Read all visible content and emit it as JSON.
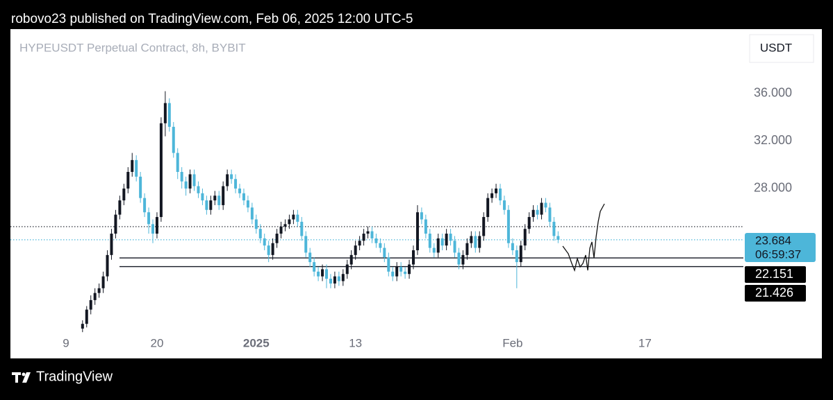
{
  "header": "robovo23 published on TradingView.com, Feb 06, 2025 12:00 UTC-5",
  "chart_data": {
    "type": "candlestick",
    "title": "HYPEUSDT Perpetual Contract, 8h, BYBIT",
    "currency": "USDT",
    "up_color": "#131722",
    "down_color": "#4db6d9",
    "x": [
      11,
      11.5,
      12,
      12.5,
      13,
      13.5,
      14,
      14.5,
      15,
      15.5,
      16,
      16.5,
      17,
      17.5,
      18,
      18.5,
      19,
      19.5,
      20,
      20.5,
      21,
      21.5,
      22,
      22.5,
      23,
      23.5,
      24,
      24.5,
      25,
      25.5,
      26,
      26.5,
      27,
      27.5,
      28,
      28.5,
      29,
      29.5,
      30,
      30.5,
      31,
      31.5,
      32,
      32.5,
      33,
      33.5,
      34,
      34.5,
      35,
      35.5,
      36,
      36.5,
      37,
      37.5,
      38,
      38.5,
      39,
      39.5,
      40,
      40.5,
      41,
      41.5,
      42,
      42.5,
      43,
      43.5,
      44,
      44.5,
      45,
      45.5,
      46,
      46.5,
      47,
      47.5,
      48,
      48.5,
      49,
      49.5,
      50,
      50.5,
      51,
      51.5,
      52,
      52.5,
      53,
      53.5,
      54,
      54.5,
      55,
      55.5,
      56,
      56.5,
      57,
      57.5,
      58,
      58.5,
      59,
      59.5,
      60,
      60.5,
      61,
      61.5,
      62,
      62.5,
      63,
      63.5,
      64,
      64.5,
      65,
      65.5,
      66,
      66.5,
      67,
      67.5,
      68,
      68.5
    ],
    "ohlc": [
      [
        16.2,
        16.9,
        15.9,
        16.6
      ],
      [
        16.6,
        18.1,
        16.3,
        17.8
      ],
      [
        17.8,
        19.0,
        17.4,
        18.6
      ],
      [
        18.6,
        19.6,
        18.2,
        19.2
      ],
      [
        19.2,
        20.0,
        18.8,
        19.6
      ],
      [
        19.6,
        21.0,
        19.2,
        20.6
      ],
      [
        20.6,
        22.8,
        20.2,
        22.4
      ],
      [
        22.4,
        24.6,
        22.0,
        24.2
      ],
      [
        24.2,
        26.2,
        23.8,
        25.8
      ],
      [
        25.8,
        27.4,
        25.4,
        27.0
      ],
      [
        27.0,
        28.4,
        26.6,
        28.0
      ],
      [
        28.0,
        29.8,
        27.6,
        29.4
      ],
      [
        29.4,
        31.0,
        29.0,
        30.4
      ],
      [
        30.4,
        30.8,
        28.6,
        29.0
      ],
      [
        29.0,
        29.4,
        26.8,
        27.2
      ],
      [
        27.2,
        27.6,
        25.6,
        26.0
      ],
      [
        26.0,
        26.4,
        24.2,
        25.0
      ],
      [
        25.0,
        25.4,
        23.4,
        24.2
      ],
      [
        24.2,
        26.0,
        23.8,
        25.6
      ],
      [
        25.6,
        34.0,
        25.2,
        33.5
      ],
      [
        33.5,
        36.2,
        32.4,
        35.2
      ],
      [
        35.2,
        35.6,
        32.8,
        33.2
      ],
      [
        33.2,
        33.6,
        30.6,
        31.0
      ],
      [
        31.0,
        31.4,
        28.8,
        29.4
      ],
      [
        29.4,
        29.8,
        28.0,
        28.6
      ],
      [
        28.6,
        29.0,
        27.4,
        28.0
      ],
      [
        28.0,
        29.6,
        27.6,
        29.2
      ],
      [
        29.2,
        29.6,
        27.8,
        28.2
      ],
      [
        28.2,
        28.6,
        27.2,
        27.6
      ],
      [
        27.6,
        28.0,
        26.6,
        27.0
      ],
      [
        27.0,
        27.4,
        25.8,
        26.2
      ],
      [
        26.2,
        27.4,
        25.8,
        27.0
      ],
      [
        27.0,
        27.8,
        26.6,
        27.4
      ],
      [
        27.4,
        27.8,
        26.2,
        26.6
      ],
      [
        26.6,
        28.6,
        26.2,
        28.2
      ],
      [
        28.2,
        29.6,
        27.8,
        29.2
      ],
      [
        29.2,
        29.6,
        28.4,
        28.8
      ],
      [
        28.8,
        29.2,
        27.6,
        28.0
      ],
      [
        28.0,
        28.4,
        27.2,
        27.6
      ],
      [
        27.6,
        28.0,
        26.6,
        27.0
      ],
      [
        27.0,
        27.4,
        26.0,
        26.4
      ],
      [
        26.4,
        26.8,
        25.0,
        25.4
      ],
      [
        25.4,
        25.8,
        24.2,
        24.6
      ],
      [
        24.6,
        25.0,
        23.4,
        23.8
      ],
      [
        23.8,
        24.2,
        22.8,
        23.2
      ],
      [
        23.2,
        23.6,
        21.8,
        22.4
      ],
      [
        22.4,
        23.8,
        22.0,
        23.4
      ],
      [
        23.4,
        24.6,
        23.0,
        24.2
      ],
      [
        24.2,
        25.2,
        23.8,
        24.8
      ],
      [
        24.8,
        25.4,
        24.4,
        25.0
      ],
      [
        25.0,
        25.8,
        24.6,
        25.4
      ],
      [
        25.4,
        26.2,
        25.0,
        25.8
      ],
      [
        25.8,
        26.2,
        24.8,
        25.2
      ],
      [
        25.2,
        25.6,
        23.6,
        24.0
      ],
      [
        24.0,
        24.4,
        22.2,
        22.6
      ],
      [
        22.6,
        23.0,
        21.4,
        21.8
      ],
      [
        21.8,
        22.2,
        20.6,
        21.0
      ],
      [
        21.0,
        21.4,
        20.2,
        20.6
      ],
      [
        20.6,
        21.6,
        20.2,
        21.2
      ],
      [
        21.2,
        21.6,
        19.6,
        20.4
      ],
      [
        20.4,
        20.8,
        19.6,
        20.0
      ],
      [
        20.0,
        21.0,
        19.6,
        20.6
      ],
      [
        20.6,
        21.0,
        19.8,
        20.2
      ],
      [
        20.2,
        21.2,
        19.8,
        20.8
      ],
      [
        20.8,
        22.0,
        20.4,
        21.6
      ],
      [
        21.6,
        22.8,
        21.2,
        22.4
      ],
      [
        22.4,
        23.6,
        22.0,
        23.2
      ],
      [
        23.2,
        24.0,
        22.8,
        23.6
      ],
      [
        23.6,
        24.6,
        23.2,
        24.2
      ],
      [
        24.2,
        24.8,
        23.8,
        24.4
      ],
      [
        24.4,
        24.8,
        23.4,
        23.8
      ],
      [
        23.8,
        24.2,
        23.0,
        23.4
      ],
      [
        23.4,
        23.8,
        22.6,
        23.0
      ],
      [
        23.0,
        23.4,
        21.8,
        22.2
      ],
      [
        22.2,
        22.6,
        20.6,
        21.0
      ],
      [
        21.0,
        21.4,
        20.2,
        20.6
      ],
      [
        20.6,
        21.8,
        20.2,
        21.4
      ],
      [
        21.4,
        21.8,
        20.6,
        21.0
      ],
      [
        21.0,
        21.4,
        20.4,
        20.8
      ],
      [
        20.8,
        22.0,
        20.4,
        21.6
      ],
      [
        21.6,
        23.2,
        21.2,
        22.8
      ],
      [
        22.8,
        26.6,
        22.4,
        26.0
      ],
      [
        26.0,
        26.4,
        25.0,
        25.4
      ],
      [
        25.4,
        25.8,
        23.8,
        24.2
      ],
      [
        24.2,
        24.6,
        22.6,
        23.0
      ],
      [
        23.0,
        23.4,
        22.2,
        22.6
      ],
      [
        22.6,
        24.2,
        22.2,
        23.8
      ],
      [
        23.8,
        24.2,
        22.8,
        23.2
      ],
      [
        23.2,
        24.6,
        22.8,
        24.2
      ],
      [
        24.2,
        24.6,
        23.2,
        23.6
      ],
      [
        23.6,
        24.0,
        22.2,
        22.6
      ],
      [
        22.6,
        23.0,
        21.2,
        21.6
      ],
      [
        21.6,
        22.8,
        21.2,
        22.4
      ],
      [
        22.4,
        23.8,
        22.0,
        23.4
      ],
      [
        23.4,
        24.4,
        23.0,
        24.0
      ],
      [
        24.0,
        24.4,
        22.6,
        23.0
      ],
      [
        23.0,
        24.4,
        22.6,
        24.0
      ],
      [
        24.0,
        26.0,
        23.6,
        25.6
      ],
      [
        25.6,
        27.6,
        25.2,
        27.2
      ],
      [
        27.2,
        28.0,
        26.8,
        27.6
      ],
      [
        27.6,
        28.4,
        27.2,
        28.0
      ],
      [
        28.0,
        28.4,
        26.6,
        27.0
      ],
      [
        27.0,
        27.4,
        25.8,
        26.2
      ],
      [
        26.2,
        26.6,
        23.0,
        23.4
      ],
      [
        23.4,
        23.8,
        22.4,
        22.8
      ],
      [
        22.8,
        23.2,
        19.6,
        21.8
      ],
      [
        21.8,
        23.6,
        21.4,
        23.2
      ],
      [
        23.2,
        25.0,
        22.8,
        24.6
      ],
      [
        24.6,
        26.0,
        24.2,
        25.6
      ],
      [
        25.6,
        26.6,
        25.2,
        26.2
      ],
      [
        26.2,
        26.6,
        25.4,
        25.8
      ],
      [
        25.8,
        27.2,
        25.4,
        26.8
      ],
      [
        26.8,
        27.2,
        26.0,
        26.4
      ],
      [
        26.4,
        26.8,
        24.8,
        25.2
      ],
      [
        25.2,
        25.6,
        23.6,
        24.0
      ],
      [
        24.0,
        24.4,
        23.4,
        23.684
      ]
    ],
    "ylim": [
      15.85,
      41.43
    ],
    "yticks": [
      {
        "value": 28,
        "label": "28.000"
      },
      {
        "value": 32,
        "label": "32.000"
      },
      {
        "value": 36,
        "label": "36.000"
      }
    ],
    "xlim": [
      2.28,
      90.9
    ],
    "xticks": [
      9,
      20,
      {
        "value": 32,
        "label": "2025"
      },
      {
        "value": 44,
        "label": "13"
      },
      {
        "value": 63,
        "label": "Feb"
      },
      {
        "value": 79,
        "label": "17"
      }
    ],
    "last_price": {
      "value": 23.684,
      "label": "23.684",
      "countdown": "06:59:37"
    },
    "levels": [
      {
        "value": 22.151,
        "label": "22.151"
      },
      {
        "value": 21.426,
        "label": "21.426"
      }
    ],
    "dotted_level": 24.79
  },
  "footer": "TradingView"
}
